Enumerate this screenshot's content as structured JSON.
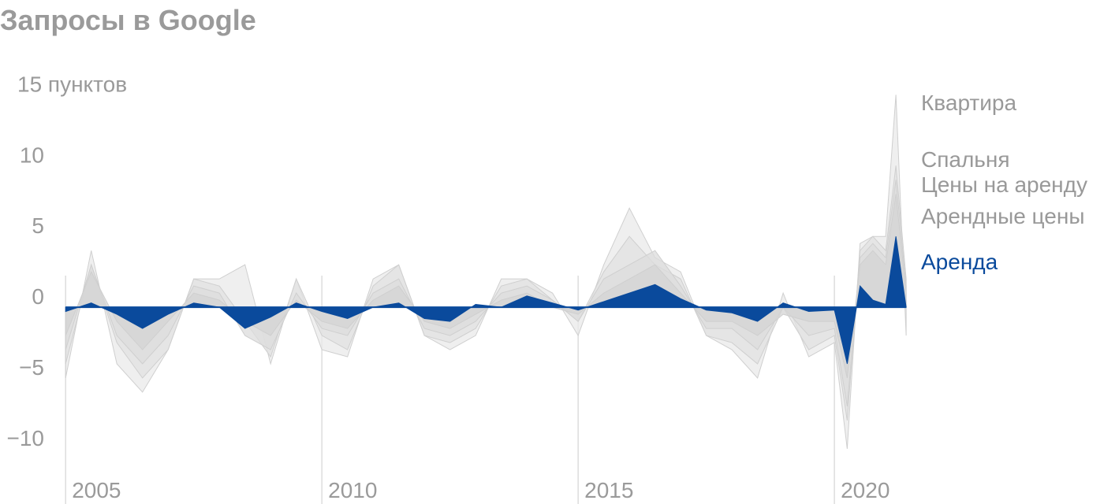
{
  "chart_data": {
    "type": "area",
    "title": "Запросы в Google",
    "x": [
      2005,
      2005.5,
      2006,
      2006.5,
      2007,
      2007.5,
      2008,
      2008.5,
      2009,
      2009.5,
      2010,
      2010.5,
      2011,
      2011.5,
      2012,
      2012.5,
      2013,
      2013.5,
      2014,
      2014.5,
      2015,
      2015.5,
      2016,
      2016.5,
      2017,
      2017.5,
      2018,
      2018.5,
      2019,
      2019.5,
      2020,
      2020.25,
      2020.5,
      2020.75,
      2021,
      2021.2,
      2021.4
    ],
    "series": [
      {
        "name": "Квартира",
        "color": "#999999",
        "fill": "#e9e9e9",
        "values": [
          -5,
          4,
          -4,
          -6,
          -3,
          2,
          2,
          3,
          -4,
          2,
          -3,
          -3.5,
          2,
          3,
          -2,
          -3,
          -2,
          2,
          2,
          1,
          -2,
          3,
          7,
          3.5,
          2.5,
          -2,
          -3,
          -5,
          1,
          -3.5,
          -2.5,
          -10,
          4.5,
          5,
          5,
          15,
          -2
        ]
      },
      {
        "name": "Спальня",
        "color": "#999999",
        "fill": "#e2e2e2",
        "values": [
          -4,
          3,
          -2.5,
          -5,
          -3,
          2,
          1.5,
          -1,
          -3.5,
          2,
          -2,
          -3,
          1.5,
          3,
          -2,
          -2.5,
          -1.5,
          1.5,
          2,
          0.5,
          -1,
          2.5,
          5,
          3,
          2,
          -2,
          -2.5,
          -4,
          0,
          -3,
          -2,
          -8,
          4,
          5,
          4,
          10,
          2
        ]
      },
      {
        "name": "Цены на аренду",
        "color": "#999999",
        "fill": "#dcdcdc",
        "values": [
          -3,
          3,
          -2,
          -4,
          -2,
          1.5,
          1,
          -2,
          -3,
          1,
          -1.5,
          -2,
          1,
          2,
          -1.5,
          -2,
          -1,
          1,
          1.5,
          0.5,
          -1,
          2,
          3,
          4,
          1.5,
          -1.5,
          -1.5,
          -3,
          0,
          -2,
          -1.5,
          -7,
          3.5,
          4.5,
          3.5,
          9,
          1.5
        ]
      },
      {
        "name": "Арендные цены",
        "color": "#999999",
        "fill": "#d4d4d4",
        "values": [
          -2,
          2.5,
          -1,
          -3,
          -1,
          1,
          0.5,
          -1,
          -2,
          0.5,
          -1,
          -1.5,
          0.5,
          1.5,
          -1,
          -1.5,
          -0.5,
          0.5,
          1,
          0,
          -0.5,
          1,
          2,
          3,
          1,
          -1,
          -1,
          -2,
          -0.5,
          -1,
          -1,
          -5,
          3,
          4,
          3,
          8,
          1
        ]
      },
      {
        "name": "Аренда",
        "color": "#0a4a9c",
        "fill": "#0a4a9c",
        "values": [
          -0.3,
          0.3,
          -0.5,
          -1.5,
          -0.5,
          0.3,
          0,
          -1.5,
          -0.7,
          0.3,
          -0.3,
          -0.8,
          0,
          0.3,
          -0.8,
          -1,
          0.2,
          0,
          0.8,
          0.3,
          -0.2,
          0.4,
          1,
          1.6,
          0.6,
          -0.2,
          -0.4,
          -1,
          0.3,
          -0.3,
          -0.2,
          -4,
          1.5,
          0.5,
          0.2,
          5,
          0
        ]
      }
    ],
    "xlim": [
      2003.72,
      2025.26
    ],
    "xticks": [
      2005,
      2010,
      2015,
      2020
    ],
    "ylim": [
      -13.9,
      21.7
    ],
    "yticks": [
      {
        "value": -10,
        "label": "−10"
      },
      {
        "value": -5,
        "label": "−5"
      },
      0,
      5,
      10,
      {
        "value": 15,
        "label": "15 пунктов"
      }
    ]
  }
}
